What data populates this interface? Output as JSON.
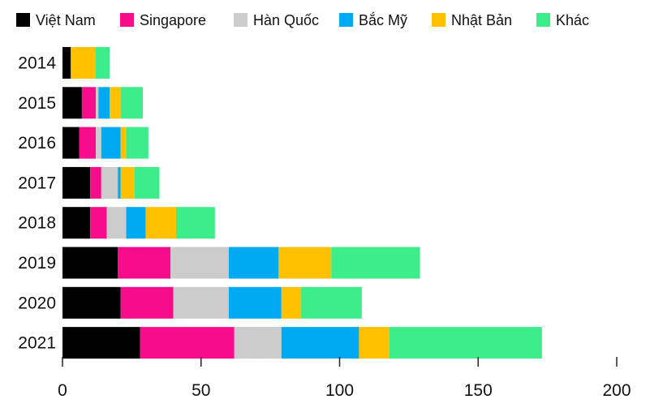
{
  "chart_data": {
    "type": "bar",
    "orientation": "horizontal",
    "stacked": true,
    "categories": [
      "2014",
      "2015",
      "2016",
      "2017",
      "2018",
      "2019",
      "2020",
      "2021"
    ],
    "series": [
      {
        "name": "Việt Nam",
        "color": "#000000",
        "values": [
          3,
          7,
          6,
          10,
          10,
          20,
          21,
          28
        ]
      },
      {
        "name": "Singapore",
        "color": "#f70d8c",
        "values": [
          0,
          5,
          6,
          4,
          6,
          19,
          19,
          34
        ]
      },
      {
        "name": "Hàn Quốc",
        "color": "#cccccc",
        "values": [
          0,
          1,
          2,
          6,
          7,
          21,
          20,
          17
        ]
      },
      {
        "name": "Bắc Mỹ",
        "color": "#00aaf2",
        "values": [
          0,
          4,
          7,
          1,
          7,
          18,
          19,
          28
        ]
      },
      {
        "name": "Nhật Bản",
        "color": "#ffc000",
        "values": [
          9,
          4,
          2,
          5,
          11,
          19,
          7,
          11
        ]
      },
      {
        "name": "Khác",
        "color": "#3ded89",
        "values": [
          5,
          8,
          8,
          9,
          14,
          32,
          22,
          55
        ]
      }
    ],
    "xlim": [
      0,
      200
    ],
    "xticks": [
      0,
      50,
      100,
      150,
      200
    ],
    "grid": false,
    "legend_position": "top"
  }
}
